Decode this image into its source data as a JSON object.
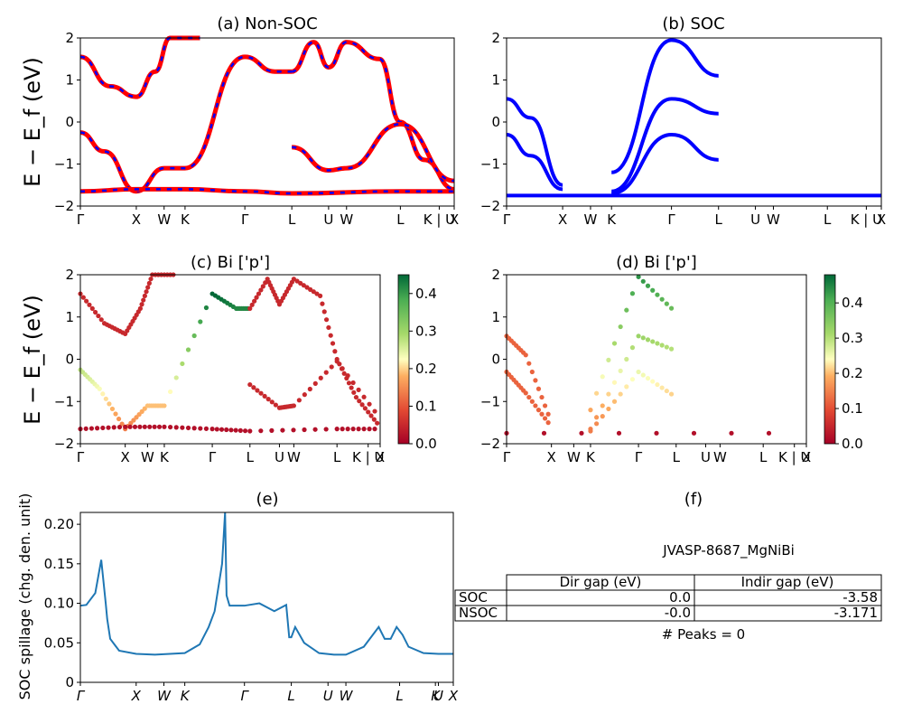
{
  "titles": {
    "a": "(a) Non-SOC",
    "b": "(b) SOC",
    "c": "(c)  Bi ['p']",
    "d": "(d) Bi ['p']",
    "e": "(e)",
    "f": "(f)"
  },
  "ylabel_band": "E − E_f (eV)",
  "ylabel_spill": "SOC spillage (chg. den. unit)",
  "kpath": [
    "Γ",
    "X",
    "W",
    "K",
    "Γ",
    "L",
    "U",
    "W",
    "L",
    "K | U",
    "X"
  ],
  "kpath_spill": [
    "Γ",
    "X",
    "W",
    "K",
    "Γ",
    "L",
    "U",
    "W",
    "L",
    "K",
    "U",
    "X"
  ],
  "colors": {
    "up": "#ff0000",
    "down": "#0000ff",
    "soc": "#0000ff",
    "spill": "#1f77b4"
  },
  "info": {
    "material": "JVASP-8687_MgNiBi",
    "table": {
      "headers": [
        "Dir gap (eV)",
        "Indir gap (eV)"
      ],
      "rows": [
        {
          "label": "SOC",
          "dir": "0.0",
          "indir": "-3.58"
        },
        {
          "label": "NSOC",
          "dir": "-0.0",
          "indir": "-3.171"
        }
      ]
    },
    "peaks": "# Peaks = 0"
  },
  "chart_data": [
    {
      "panel": "a",
      "type": "line",
      "title": "(a) Non-SOC",
      "ylabel": "E − E_f (eV)",
      "ylim": [
        -2,
        2
      ],
      "yticks": [
        -2,
        -1,
        0,
        1,
        2
      ],
      "xticks": {
        "Γ": 0,
        "X": 0.187,
        "W": 0.28,
        "K": 0.35,
        "Γ2": 0.55,
        "L": 0.707,
        "U": 0.83,
        "W2": 0.89,
        "L2": 1.07,
        "K|U": 1.2,
        "X2": 1.25
      },
      "series": [
        {
          "x": [
            0,
            0.1,
            0.187,
            0.25,
            0.3,
            0.4
          ],
          "y": [
            1.55,
            0.85,
            0.6,
            1.2,
            2.0,
            2.0
          ]
        },
        {
          "x": [
            0,
            0.08,
            0.187,
            0.28,
            0.35,
            0.55,
            0.65,
            0.707
          ],
          "y": [
            -0.25,
            -0.7,
            -1.65,
            -1.1,
            -1.1,
            1.55,
            1.2,
            1.2
          ]
        },
        {
          "x": [
            0.707,
            0.78,
            0.83,
            0.89,
            1.0,
            1.07,
            1.15,
            1.25
          ],
          "y": [
            1.2,
            1.9,
            1.3,
            1.9,
            1.5,
            0.0,
            -0.9,
            -1.6
          ]
        },
        {
          "x": [
            0.707,
            0.83,
            0.89,
            1.07,
            1.25
          ],
          "y": [
            -0.6,
            -1.15,
            -1.1,
            -0.05,
            -1.4
          ]
        },
        {
          "x": [
            0,
            0.187,
            0.35,
            0.55,
            0.707,
            1.07,
            1.25
          ],
          "y": [
            -1.65,
            -1.6,
            -1.6,
            -1.65,
            -1.7,
            -1.65,
            -1.65
          ]
        }
      ]
    },
    {
      "panel": "b",
      "type": "line",
      "title": "(b) SOC",
      "ylim": [
        -2,
        2
      ],
      "yticks": [
        -2,
        -1,
        0,
        1,
        2
      ],
      "series": [
        {
          "x": [
            0,
            0.08,
            0.187
          ],
          "y": [
            0.55,
            0.1,
            -1.5
          ]
        },
        {
          "x": [
            0,
            0.08,
            0.187
          ],
          "y": [
            -0.3,
            -0.8,
            -1.6
          ]
        },
        {
          "x": [
            0.35,
            0.55,
            0.707
          ],
          "y": [
            -1.65,
            0.55,
            0.2
          ]
        },
        {
          "x": [
            0.35,
            0.55,
            0.707
          ],
          "y": [
            -1.7,
            -0.3,
            -0.9
          ]
        },
        {
          "x": [
            0.35,
            0.55,
            0.707
          ],
          "y": [
            -1.2,
            1.95,
            1.1
          ]
        },
        {
          "x": [
            0,
            1.25
          ],
          "y": [
            -1.75,
            -1.75
          ]
        }
      ]
    },
    {
      "panel": "c",
      "type": "scatter",
      "title": "(c)  Bi ['p']",
      "ylim": [
        -2,
        2
      ],
      "colorbar": {
        "min": 0.0,
        "max": 0.45,
        "ticks": [
          0.0,
          0.1,
          0.2,
          0.3,
          0.4
        ]
      }
    },
    {
      "panel": "d",
      "type": "scatter",
      "title": "(d) Bi ['p']",
      "ylim": [
        -2,
        2
      ],
      "colorbar": {
        "min": 0.0,
        "max": 0.48,
        "ticks": [
          0.0,
          0.1,
          0.2,
          0.3,
          0.4
        ]
      }
    },
    {
      "panel": "e",
      "type": "line",
      "title": "(e)",
      "ylabel": "SOC spillage (chg. den. unit)",
      "ylim": [
        0,
        0.215
      ],
      "yticks": [
        0.0,
        0.05,
        0.1,
        0.15,
        0.2
      ],
      "x": [
        0,
        0.02,
        0.05,
        0.07,
        0.085,
        0.09,
        0.1,
        0.13,
        0.187,
        0.25,
        0.35,
        0.4,
        0.43,
        0.45,
        0.475,
        0.485,
        0.49,
        0.5,
        0.55,
        0.6,
        0.65,
        0.69,
        0.7,
        0.707,
        0.72,
        0.75,
        0.8,
        0.85,
        0.89,
        0.95,
        1.0,
        1.02,
        1.04,
        1.06,
        1.08,
        1.1,
        1.15,
        1.2,
        1.25
      ],
      "y": [
        0.097,
        0.098,
        0.113,
        0.155,
        0.1,
        0.08,
        0.055,
        0.04,
        0.036,
        0.035,
        0.037,
        0.048,
        0.07,
        0.09,
        0.15,
        0.215,
        0.11,
        0.097,
        0.097,
        0.1,
        0.09,
        0.098,
        0.057,
        0.057,
        0.07,
        0.05,
        0.037,
        0.035,
        0.035,
        0.045,
        0.07,
        0.055,
        0.055,
        0.07,
        0.06,
        0.045,
        0.037,
        0.036,
        0.036
      ]
    }
  ]
}
